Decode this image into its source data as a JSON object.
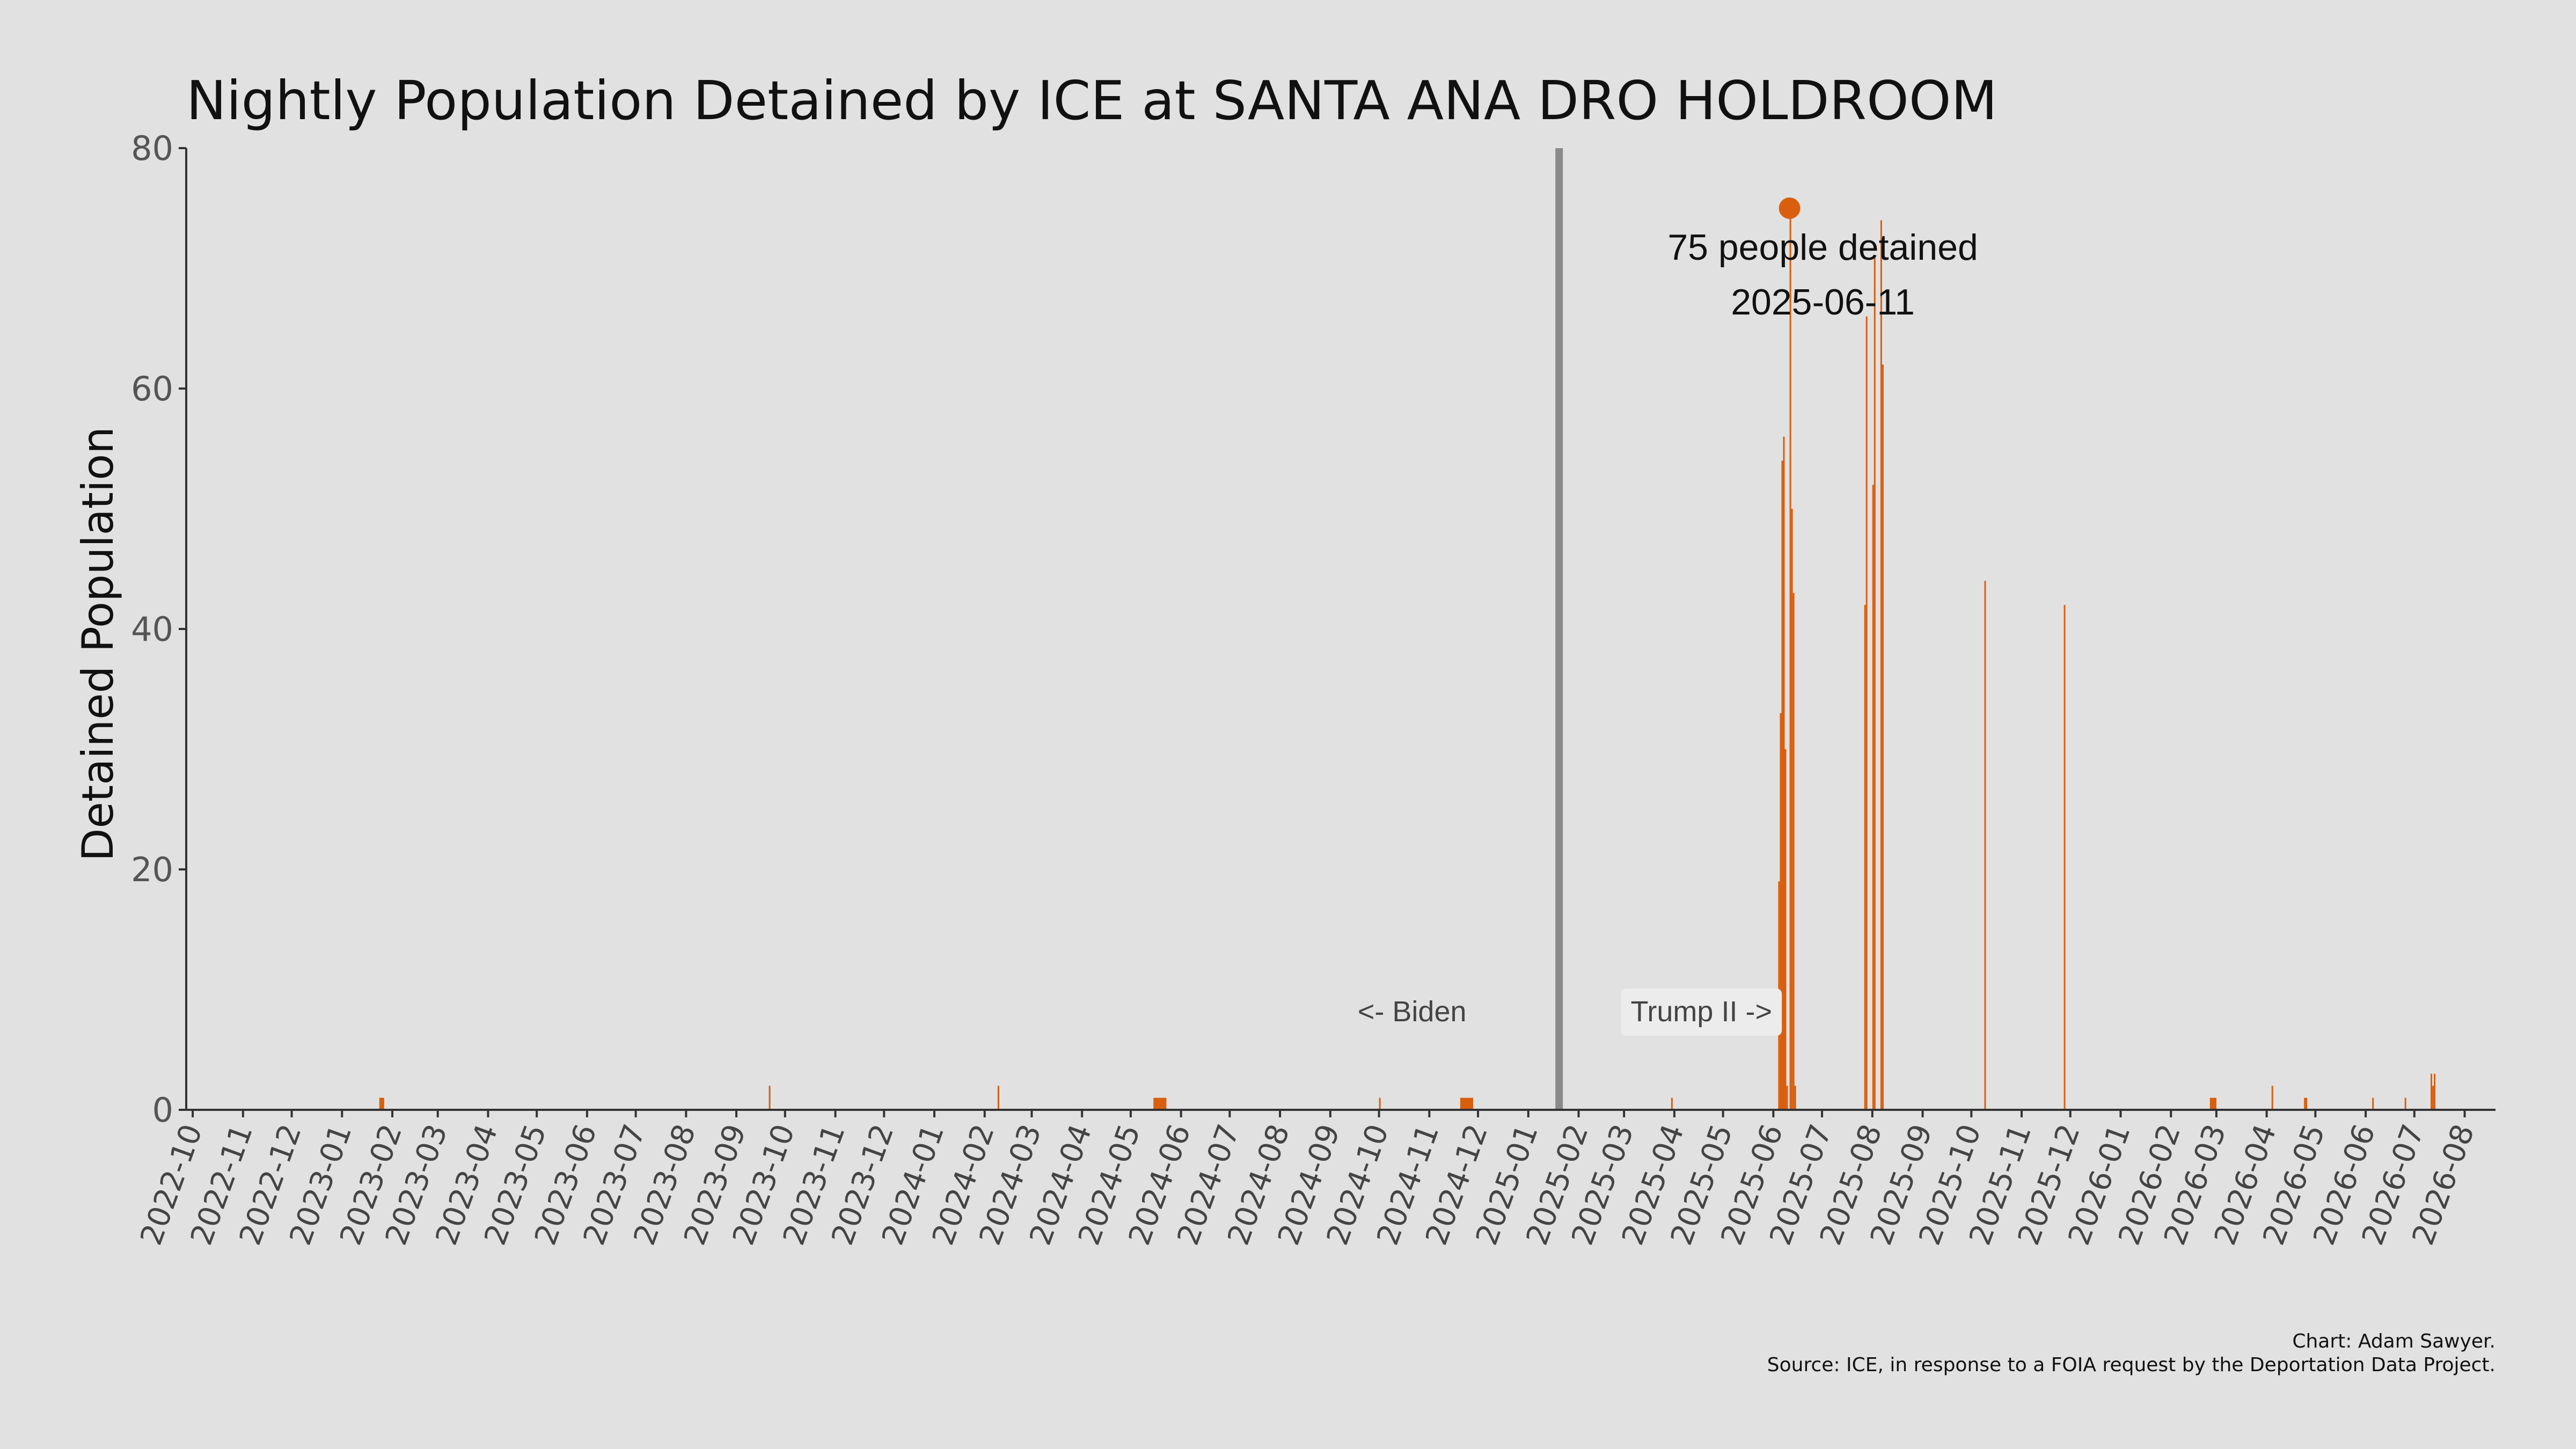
{
  "chart_data": {
    "type": "bar",
    "title": "Nightly Population Detained by ICE at SANTA ANA DRO HOLDROOM",
    "ylabel": "Detained Population",
    "xlabel": "",
    "ylim": [
      0,
      80
    ],
    "yticks": [
      0,
      20,
      40,
      60,
      80
    ],
    "xlim": [
      "2022-09-27",
      "2026-08-20"
    ],
    "xticks": [
      "2022-10",
      "2022-11",
      "2022-12",
      "2023-01",
      "2023-02",
      "2023-03",
      "2023-04",
      "2023-05",
      "2023-06",
      "2023-07",
      "2023-08",
      "2023-09",
      "2023-10",
      "2023-11",
      "2023-12",
      "2024-01",
      "2024-02",
      "2024-03",
      "2024-04",
      "2024-05",
      "2024-06",
      "2024-07",
      "2024-08",
      "2024-09",
      "2024-10",
      "2024-11",
      "2024-12",
      "2025-01",
      "2025-02",
      "2025-03",
      "2025-04",
      "2025-05",
      "2025-06",
      "2025-07",
      "2025-08",
      "2025-09",
      "2025-10",
      "2025-11",
      "2025-12",
      "2026-01",
      "2026-02",
      "2026-03",
      "2026-04",
      "2026-05",
      "2026-06",
      "2026-07",
      "2026-08"
    ],
    "grid": false,
    "bar_color": "#d95f0e",
    "points": [
      {
        "date": "2023-01-24",
        "value": 1,
        "days": 3
      },
      {
        "date": "2023-09-21",
        "value": 2,
        "days": 1
      },
      {
        "date": "2024-02-09",
        "value": 2,
        "days": 1
      },
      {
        "date": "2024-05-15",
        "value": 1,
        "days": 8
      },
      {
        "date": "2024-10-01",
        "value": 1,
        "days": 1
      },
      {
        "date": "2024-11-20",
        "value": 1,
        "days": 8
      },
      {
        "date": "2025-03-30",
        "value": 1,
        "days": 1
      },
      {
        "date": "2025-06-04",
        "value": 19,
        "days": 1
      },
      {
        "date": "2025-06-05",
        "value": 33,
        "days": 1
      },
      {
        "date": "2025-06-06",
        "value": 54,
        "days": 1
      },
      {
        "date": "2025-06-07",
        "value": 56,
        "days": 1
      },
      {
        "date": "2025-06-08",
        "value": 30,
        "days": 1
      },
      {
        "date": "2025-06-09",
        "value": 2,
        "days": 1
      },
      {
        "date": "2025-06-11",
        "value": 75,
        "days": 1
      },
      {
        "date": "2025-06-12",
        "value": 50,
        "days": 1
      },
      {
        "date": "2025-06-13",
        "value": 43,
        "days": 1
      },
      {
        "date": "2025-06-14",
        "value": 2,
        "days": 1
      },
      {
        "date": "2025-07-27",
        "value": 42,
        "days": 1
      },
      {
        "date": "2025-07-28",
        "value": 66,
        "days": 1
      },
      {
        "date": "2025-08-01",
        "value": 52,
        "days": 1
      },
      {
        "date": "2025-08-02",
        "value": 71,
        "days": 1
      },
      {
        "date": "2025-08-06",
        "value": 74,
        "days": 1
      },
      {
        "date": "2025-08-07",
        "value": 62,
        "days": 1
      },
      {
        "date": "2025-10-09",
        "value": 44,
        "days": 1
      },
      {
        "date": "2025-11-27",
        "value": 42,
        "days": 1
      },
      {
        "date": "2026-02-25",
        "value": 1,
        "days": 4
      },
      {
        "date": "2026-04-04",
        "value": 2,
        "days": 1
      },
      {
        "date": "2026-04-24",
        "value": 1,
        "days": 2
      },
      {
        "date": "2026-06-05",
        "value": 1,
        "days": 1
      },
      {
        "date": "2026-06-25",
        "value": 1,
        "days": 1
      },
      {
        "date": "2026-07-11",
        "value": 3,
        "days": 1
      },
      {
        "date": "2026-07-12",
        "value": 2,
        "days": 1
      },
      {
        "date": "2026-07-13",
        "value": 3,
        "days": 1
      }
    ],
    "inauguration_date": "2025-01-20",
    "peak": {
      "date": "2025-06-11",
      "value": 75
    },
    "annotations": {
      "peak_label": "75 people detained",
      "peak_date_label": "2025-06-11",
      "biden_label": "<- Biden",
      "trump_label": "Trump II ->"
    },
    "credit_line1": "Chart: Adam Sawyer.",
    "credit_line2": "Source: ICE, in response to a FOIA request by the Deportation Data Project.",
    "colors": {
      "background": "#e1e1e1",
      "bar": "#d95f0e",
      "divider": "#8a8a8a",
      "axis": "#333333"
    }
  }
}
